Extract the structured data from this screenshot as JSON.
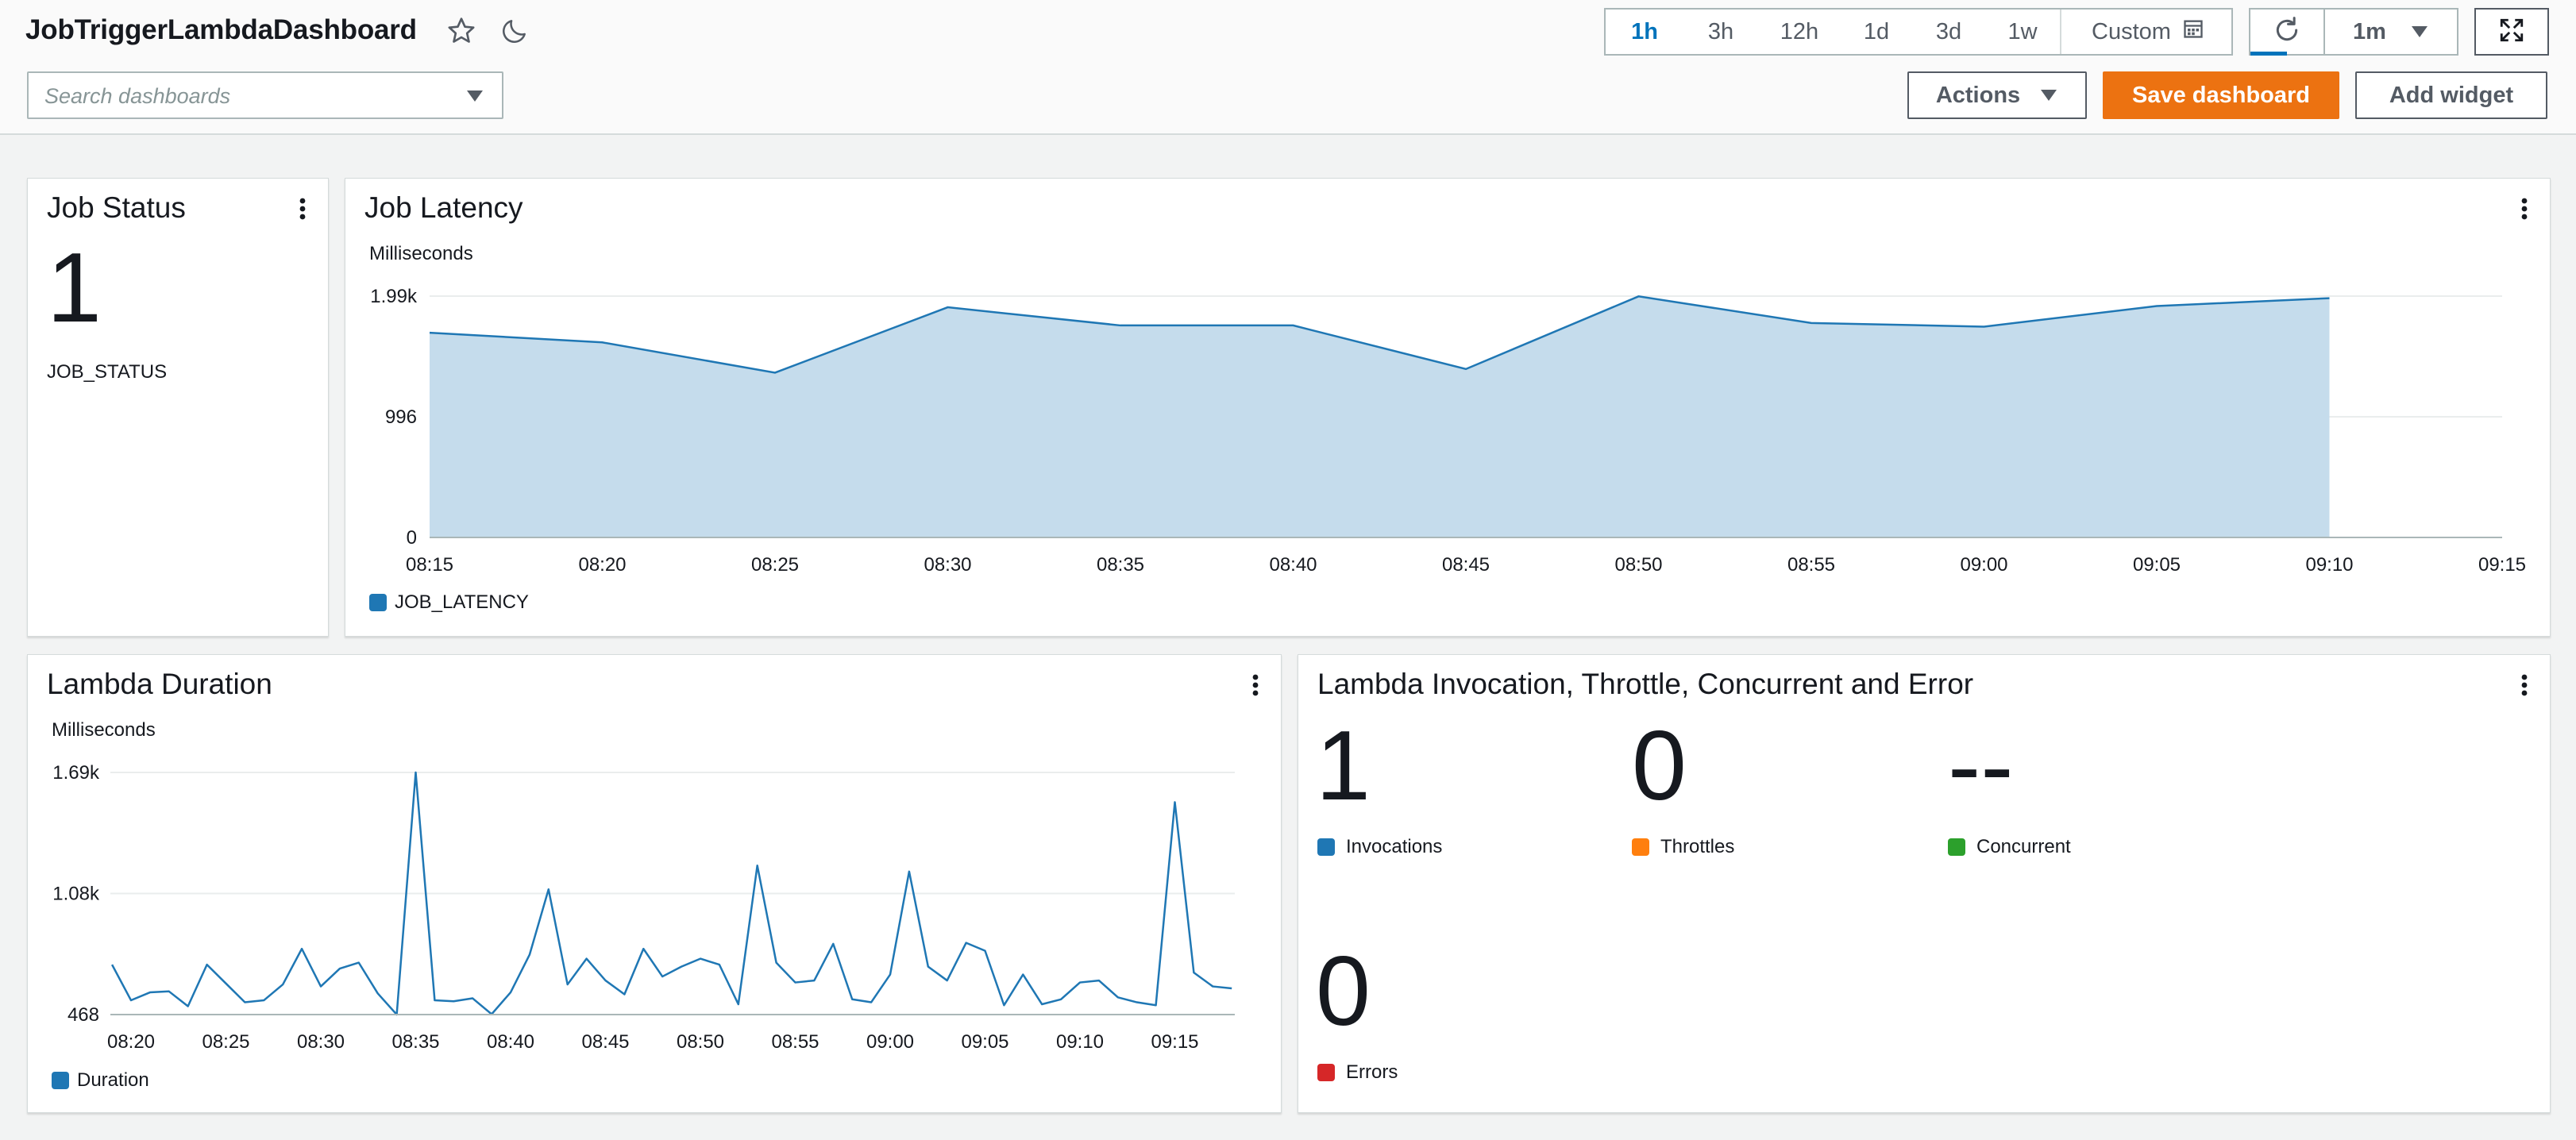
{
  "header": {
    "title": "JobTriggerLambdaDashboard",
    "search_placeholder": "Search dashboards",
    "time_ranges": [
      "1h",
      "3h",
      "12h",
      "1d",
      "3d",
      "1w"
    ],
    "selected_range": "1h",
    "custom_label": "Custom",
    "refresh_interval": "1m",
    "actions_label": "Actions",
    "save_label": "Save dashboard",
    "add_widget_label": "Add widget"
  },
  "colors": {
    "blue": "#1f77b4",
    "orange": "#ff7f0e",
    "green": "#2ca02c",
    "red": "#d62728",
    "save_button": "#ec7211",
    "link_blue": "#0073bb"
  },
  "job_status": {
    "title": "Job Status",
    "value": "1",
    "label": "JOB_STATUS"
  },
  "job_latency": {
    "title": "Job Latency",
    "chart_data": {
      "type": "area",
      "ylabel": "Milliseconds",
      "y_ticks": [
        "0",
        "996",
        "1.99k"
      ],
      "x_ticks": [
        "08:15",
        "08:20",
        "08:25",
        "08:30",
        "08:35",
        "08:40",
        "08:45",
        "08:50",
        "08:55",
        "09:00",
        "09:05",
        "09:10",
        "09:15"
      ],
      "ylim": [
        0,
        1992
      ],
      "series": [
        {
          "name": "JOB_LATENCY",
          "color": "#1f77b4",
          "x": [
            "08:15",
            "08:20",
            "08:25",
            "08:30",
            "08:35",
            "08:40",
            "08:45",
            "08:50",
            "08:55",
            "09:00",
            "09:05",
            "09:10"
          ],
          "values": [
            1690,
            1610,
            1360,
            1900,
            1750,
            1750,
            1390,
            1990,
            1770,
            1740,
            1910,
            1975
          ]
        }
      ]
    }
  },
  "lambda_duration": {
    "title": "Lambda Duration",
    "chart_data": {
      "type": "line",
      "ylabel": "Milliseconds",
      "y_ticks": [
        "468",
        "1.08k",
        "1.69k"
      ],
      "x_ticks": [
        "08:20",
        "08:25",
        "08:30",
        "08:35",
        "08:40",
        "08:45",
        "08:50",
        "08:55",
        "09:00",
        "09:05",
        "09:10",
        "09:15"
      ],
      "ylim": [
        468,
        1690
      ],
      "series": [
        {
          "name": "Duration",
          "color": "#1f77b4",
          "x_minutes_after_0820": [
            -1,
            0,
            1,
            2,
            3,
            4,
            5,
            6,
            7,
            8,
            9,
            10,
            11,
            12,
            13,
            14,
            15,
            16,
            17,
            18,
            19,
            20,
            21,
            22,
            23,
            24,
            25,
            26,
            27,
            28,
            29,
            30,
            31,
            32,
            33,
            34,
            35,
            36,
            37,
            38,
            39,
            40,
            41,
            42,
            43,
            44,
            45,
            46,
            47,
            48,
            49,
            50,
            51,
            52,
            53,
            54,
            55,
            56,
            57,
            58
          ],
          "values": [
            720,
            540,
            580,
            585,
            510,
            720,
            625,
            530,
            540,
            620,
            800,
            610,
            700,
            730,
            575,
            468,
            1690,
            540,
            535,
            550,
            470,
            580,
            770,
            1100,
            620,
            750,
            640,
            570,
            800,
            660,
            710,
            750,
            720,
            520,
            1220,
            730,
            630,
            640,
            825,
            545,
            530,
            670,
            1190,
            710,
            640,
            830,
            790,
            515,
            670,
            520,
            545,
            630,
            640,
            555,
            530,
            515,
            1540,
            680,
            610,
            600
          ]
        }
      ]
    }
  },
  "lambda_invocation": {
    "title": "Lambda Invocation, Throttle, Concurrent and Error",
    "metrics": [
      {
        "name": "Invocations",
        "value": "1",
        "color": "#1f77b4"
      },
      {
        "name": "Throttles",
        "value": "0",
        "color": "#ff7f0e"
      },
      {
        "name": "Concurrent",
        "value": "--",
        "color": "#2ca02c"
      },
      {
        "name": "Errors",
        "value": "0",
        "color": "#d62728"
      }
    ]
  }
}
